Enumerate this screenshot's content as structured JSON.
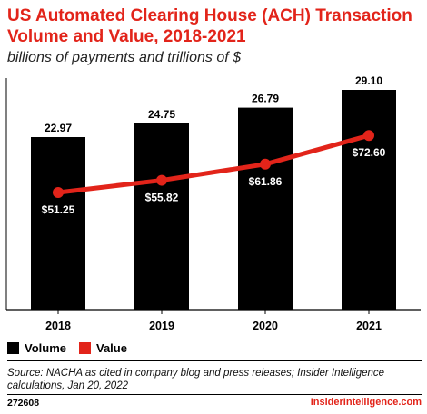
{
  "header": {
    "title": "US Automated Clearing House (ACH) Transaction Volume and Value, 2018-2021",
    "subtitle": "billions of payments and trillions of $"
  },
  "colors": {
    "title": "#e2241a",
    "bar": "#000000",
    "line": "#e2241a",
    "background": "#ffffff"
  },
  "chart_data": {
    "type": "bar",
    "categories": [
      "2018",
      "2019",
      "2020",
      "2021"
    ],
    "series": [
      {
        "name": "Volume",
        "type": "bar",
        "values": [
          22.97,
          24.75,
          26.79,
          29.1
        ],
        "labels": [
          "22.97",
          "24.75",
          "26.79",
          "29.10"
        ]
      },
      {
        "name": "Value",
        "type": "line",
        "values": [
          51.25,
          55.82,
          61.86,
          72.6
        ],
        "labels": [
          "$51.25",
          "$55.82",
          "$61.86",
          "$72.60"
        ]
      }
    ],
    "legend": "bottom-left",
    "grid": false
  },
  "legend": {
    "items": [
      {
        "label": "Volume",
        "color": "#000000"
      },
      {
        "label": "Value",
        "color": "#e2241a"
      }
    ]
  },
  "footer": {
    "source": "Source: NACHA as cited in company blog and press releases; Insider Intelligence calculations, Jan 20, 2022",
    "chart_id": "272608",
    "brand": "InsiderIntelligence.com"
  }
}
